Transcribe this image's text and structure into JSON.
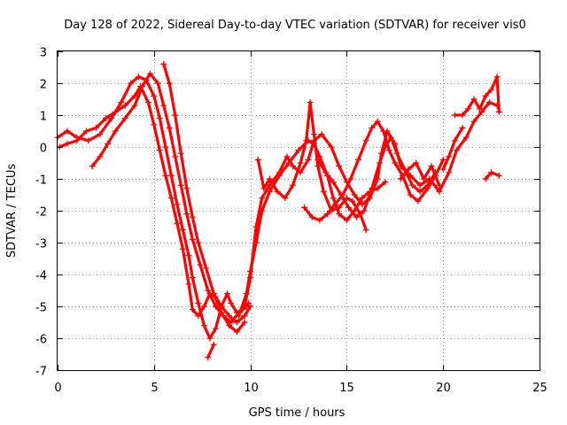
{
  "chart_data": {
    "type": "scatter",
    "title": "Day 128 of 2022, Sidereal Day-to-day VTEC variation (SDTVAR) for receiver vis0",
    "xlabel": "GPS time / hours",
    "ylabel": "SDTVAR / TECUs",
    "xlim": [
      0,
      25
    ],
    "ylim": [
      -7,
      3
    ],
    "x_ticks": [
      0,
      5,
      10,
      15,
      20,
      25
    ],
    "y_ticks": [
      -7,
      -6,
      -5,
      -4,
      -3,
      -2,
      -1,
      0,
      1,
      2,
      3
    ],
    "grid": true,
    "marker": "+",
    "color": "#ff0000",
    "series": [
      {
        "name": "trace-1",
        "points": [
          [
            0.0,
            0.3
          ],
          [
            0.5,
            0.5
          ],
          [
            1.0,
            0.3
          ],
          [
            1.6,
            0.2
          ],
          [
            2.2,
            0.4
          ],
          [
            2.8,
            0.9
          ],
          [
            3.3,
            1.4
          ],
          [
            3.8,
            2.0
          ],
          [
            4.2,
            2.2
          ],
          [
            4.6,
            2.1
          ],
          [
            5.0,
            1.6
          ],
          [
            5.3,
            0.9
          ],
          [
            5.6,
            0.0
          ],
          [
            5.9,
            -0.9
          ],
          [
            6.2,
            -1.8
          ],
          [
            6.5,
            -2.6
          ],
          [
            6.8,
            -3.4
          ],
          [
            7.0,
            -4.1
          ],
          [
            7.3,
            -4.9
          ],
          [
            7.6,
            -5.6
          ],
          [
            7.9,
            -6.0
          ],
          [
            8.2,
            -5.7
          ],
          [
            8.5,
            -5.0
          ],
          [
            8.8,
            -4.6
          ],
          [
            9.0,
            -4.9
          ],
          [
            9.3,
            -5.2
          ],
          [
            9.6,
            -5.1
          ],
          [
            9.9,
            -4.9
          ]
        ]
      },
      {
        "name": "trace-2",
        "points": [
          [
            0.1,
            0.0
          ],
          [
            0.5,
            0.1
          ],
          [
            1.0,
            0.2
          ],
          [
            1.5,
            0.5
          ],
          [
            2.0,
            0.6
          ],
          [
            2.5,
            0.9
          ],
          [
            3.0,
            1.1
          ],
          [
            3.5,
            1.3
          ],
          [
            4.0,
            1.6
          ],
          [
            4.3,
            1.9
          ],
          [
            4.7,
            1.4
          ],
          [
            5.0,
            0.7
          ],
          [
            5.3,
            -0.1
          ],
          [
            5.6,
            -0.9
          ],
          [
            5.9,
            -1.6
          ],
          [
            6.2,
            -2.4
          ],
          [
            6.5,
            -3.2
          ],
          [
            6.8,
            -4.3
          ],
          [
            7.0,
            -5.1
          ],
          [
            7.3,
            -5.3
          ],
          [
            7.6,
            -5.0
          ],
          [
            7.9,
            -4.6
          ],
          [
            8.2,
            -4.7
          ],
          [
            8.5,
            -5.0
          ],
          [
            8.9,
            -5.3
          ],
          [
            9.3,
            -5.5
          ],
          [
            9.7,
            -5.3
          ],
          [
            10.0,
            -5.0
          ]
        ]
      },
      {
        "name": "trace-3",
        "points": [
          [
            1.8,
            -0.6
          ],
          [
            2.2,
            -0.3
          ],
          [
            2.6,
            0.1
          ],
          [
            3.0,
            0.5
          ],
          [
            3.5,
            0.9
          ],
          [
            4.0,
            1.3
          ],
          [
            4.4,
            1.9
          ],
          [
            4.8,
            2.3
          ],
          [
            5.2,
            2.0
          ],
          [
            5.5,
            1.3
          ],
          [
            5.8,
            0.6
          ],
          [
            6.1,
            -0.3
          ],
          [
            6.4,
            -1.2
          ],
          [
            6.7,
            -2.1
          ],
          [
            7.0,
            -2.9
          ],
          [
            7.4,
            -3.7
          ],
          [
            7.8,
            -4.5
          ],
          [
            8.2,
            -5.0
          ],
          [
            8.6,
            -5.3
          ],
          [
            9.0,
            -5.5
          ],
          [
            9.4,
            -5.2
          ],
          [
            9.8,
            -5.0
          ]
        ]
      },
      {
        "name": "trace-4",
        "points": [
          [
            5.5,
            2.6
          ],
          [
            5.8,
            2.0
          ],
          [
            6.1,
            1.0
          ],
          [
            6.4,
            -0.2
          ],
          [
            6.7,
            -1.3
          ],
          [
            7.0,
            -2.2
          ],
          [
            7.3,
            -3.0
          ],
          [
            7.7,
            -3.8
          ],
          [
            8.1,
            -4.6
          ],
          [
            8.5,
            -5.2
          ],
          [
            8.9,
            -5.6
          ],
          [
            9.3,
            -5.8
          ],
          [
            9.7,
            -5.5
          ]
        ]
      },
      {
        "name": "trace-5",
        "points": [
          [
            7.8,
            -6.6
          ],
          [
            8.1,
            -6.2
          ]
        ]
      },
      {
        "name": "trace-6",
        "points": [
          [
            9.4,
            -5.3
          ],
          [
            9.8,
            -4.6
          ],
          [
            10.0,
            -3.9
          ],
          [
            10.3,
            -3.0
          ],
          [
            10.6,
            -2.0
          ],
          [
            11.0,
            -1.4
          ],
          [
            11.5,
            -0.9
          ],
          [
            12.0,
            -0.5
          ],
          [
            12.5,
            -0.1
          ],
          [
            13.0,
            0.2
          ],
          [
            13.3,
            0.1
          ],
          [
            13.6,
            -0.3
          ],
          [
            14.0,
            -0.9
          ],
          [
            14.3,
            -1.6
          ],
          [
            14.6,
            -2.1
          ],
          [
            15.0,
            -2.3
          ],
          [
            15.4,
            -2.0
          ],
          [
            15.8,
            -1.6
          ],
          [
            16.2,
            -1.4
          ],
          [
            16.6,
            -1.3
          ],
          [
            17.0,
            -1.1
          ]
        ]
      },
      {
        "name": "trace-7",
        "points": [
          [
            9.7,
            -5.0
          ],
          [
            10.0,
            -4.1
          ],
          [
            10.3,
            -2.5
          ],
          [
            10.6,
            -1.6
          ],
          [
            11.0,
            -1.2
          ],
          [
            11.5,
            -0.8
          ],
          [
            11.9,
            -0.3
          ],
          [
            12.2,
            -0.6
          ],
          [
            12.6,
            -0.8
          ],
          [
            13.0,
            -0.4
          ],
          [
            13.3,
            0.2
          ],
          [
            13.7,
            0.4
          ],
          [
            14.2,
            0.0
          ],
          [
            14.6,
            -0.6
          ],
          [
            15.0,
            -1.1
          ],
          [
            15.4,
            -1.5
          ],
          [
            15.8,
            -1.8
          ],
          [
            16.2,
            -1.6
          ],
          [
            16.6,
            -1.0
          ],
          [
            16.8,
            -0.2
          ],
          [
            17.1,
            0.5
          ],
          [
            17.5,
            0.1
          ],
          [
            17.8,
            -0.6
          ],
          [
            18.3,
            -0.9
          ],
          [
            18.8,
            -1.2
          ],
          [
            19.3,
            -1.0
          ],
          [
            19.8,
            -1.4
          ],
          [
            20.3,
            -0.8
          ],
          [
            20.7,
            -0.1
          ],
          [
            21.2,
            0.3
          ],
          [
            21.6,
            0.8
          ],
          [
            22.0,
            1.1
          ],
          [
            22.4,
            1.4
          ],
          [
            22.8,
            1.3
          ]
        ]
      },
      {
        "name": "trace-8",
        "points": [
          [
            10.4,
            -0.4
          ],
          [
            10.7,
            -1.3
          ],
          [
            11.0,
            -1.0
          ],
          [
            11.4,
            -1.4
          ],
          [
            11.8,
            -1.6
          ],
          [
            12.2,
            -1.2
          ],
          [
            12.6,
            -0.5
          ],
          [
            12.9,
            0.2
          ],
          [
            13.1,
            1.4
          ],
          [
            13.3,
            0.4
          ],
          [
            13.5,
            -0.6
          ],
          [
            13.8,
            -1.4
          ],
          [
            14.2,
            -2.0
          ],
          [
            14.6,
            -1.9
          ],
          [
            15.0,
            -1.6
          ],
          [
            15.3,
            -1.7
          ],
          [
            15.7,
            -2.1
          ],
          [
            16.0,
            -2.6
          ]
        ]
      },
      {
        "name": "trace-9",
        "points": [
          [
            12.8,
            -1.9
          ],
          [
            13.2,
            -2.2
          ],
          [
            13.6,
            -2.3
          ],
          [
            14.0,
            -2.1
          ],
          [
            14.4,
            -1.8
          ],
          [
            14.8,
            -1.5
          ],
          [
            15.2,
            -1.0
          ],
          [
            15.6,
            -0.4
          ],
          [
            16.0,
            0.2
          ],
          [
            16.3,
            0.6
          ],
          [
            16.6,
            0.8
          ],
          [
            16.9,
            0.5
          ],
          [
            17.2,
            -0.1
          ],
          [
            17.5,
            -0.5
          ],
          [
            17.9,
            -0.9
          ],
          [
            18.3,
            -1.5
          ],
          [
            18.7,
            -1.7
          ],
          [
            19.2,
            -1.3
          ],
          [
            19.6,
            -0.9
          ],
          [
            20.0,
            -0.4
          ]
        ]
      },
      {
        "name": "trace-10",
        "points": [
          [
            13.5,
            -0.4
          ],
          [
            13.9,
            -0.8
          ],
          [
            14.3,
            -1.1
          ],
          [
            14.7,
            -1.5
          ],
          [
            15.1,
            -1.9
          ],
          [
            15.5,
            -2.2
          ],
          [
            15.9,
            -2.0
          ],
          [
            16.3,
            -1.3
          ],
          [
            16.7,
            -0.5
          ],
          [
            17.0,
            0.0
          ],
          [
            17.3,
            0.3
          ],
          [
            17.6,
            -0.2
          ],
          [
            18.0,
            -0.7
          ],
          [
            18.4,
            -1.2
          ],
          [
            18.8,
            -1.4
          ],
          [
            19.2,
            -1.2
          ],
          [
            19.6,
            -0.8
          ]
        ]
      },
      {
        "name": "trace-11",
        "points": [
          [
            17.8,
            -1.0
          ],
          [
            18.2,
            -0.7
          ],
          [
            18.6,
            -0.5
          ],
          [
            19.0,
            -1.0
          ],
          [
            19.4,
            -0.6
          ],
          [
            19.8,
            -1.2
          ]
        ]
      },
      {
        "name": "trace-12",
        "points": [
          [
            20.0,
            -0.7
          ],
          [
            20.3,
            -0.3
          ],
          [
            20.6,
            0.2
          ],
          [
            21.0,
            0.6
          ]
        ]
      },
      {
        "name": "trace-13",
        "points": [
          [
            20.6,
            1.0
          ],
          [
            21.0,
            1.0
          ],
          [
            21.3,
            1.2
          ],
          [
            21.6,
            1.5
          ],
          [
            21.9,
            1.2
          ],
          [
            22.2,
            1.6
          ],
          [
            22.5,
            1.8
          ],
          [
            22.8,
            2.2
          ],
          [
            22.9,
            1.1
          ]
        ]
      },
      {
        "name": "trace-14",
        "points": [
          [
            22.2,
            -1.0
          ],
          [
            22.5,
            -0.8
          ],
          [
            22.9,
            -0.9
          ]
        ]
      }
    ]
  }
}
